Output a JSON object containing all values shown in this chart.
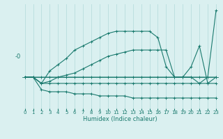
{
  "xlabel": "Humidex (Indice chaleur)",
  "ylabel": "-0",
  "x": [
    0,
    1,
    2,
    3,
    4,
    5,
    6,
    7,
    8,
    9,
    10,
    11,
    12,
    13,
    14,
    15,
    16,
    17,
    18,
    19,
    20,
    21,
    22,
    23
  ],
  "line_top": [
    0,
    0,
    0,
    0,
    0,
    0,
    0,
    0,
    0,
    0,
    0,
    0,
    0,
    0,
    0,
    0,
    0,
    0,
    0,
    0,
    0,
    0,
    0,
    3.2
  ],
  "line_hump": [
    0,
    0,
    -0.3,
    0.3,
    0.6,
    0.9,
    1.3,
    1.5,
    1.7,
    1.9,
    2.1,
    2.2,
    2.2,
    2.2,
    2.2,
    2.2,
    1.9,
    0.5,
    0.0,
    0.0,
    0.0,
    -0.3,
    0.0,
    0.0
  ],
  "line_mid": [
    0,
    0,
    -0.3,
    -0.2,
    0.0,
    0.1,
    0.2,
    0.4,
    0.6,
    0.8,
    1.0,
    1.1,
    1.2,
    1.3,
    1.3,
    1.3,
    1.3,
    1.3,
    0.0,
    0.0,
    0.5,
    1.5,
    -0.3,
    0.0
  ],
  "line_flat1": [
    0,
    0,
    -0.3,
    -0.3,
    -0.3,
    -0.3,
    -0.3,
    -0.3,
    -0.3,
    -0.3,
    -0.3,
    -0.3,
    -0.3,
    -0.3,
    -0.3,
    -0.3,
    -0.3,
    -0.3,
    -0.3,
    -0.3,
    -0.3,
    -0.3,
    -0.3,
    -0.3
  ],
  "line_flat2": [
    0,
    0,
    -0.6,
    -0.7,
    -0.7,
    -0.7,
    -0.8,
    -0.8,
    -0.8,
    -0.9,
    -0.9,
    -0.9,
    -0.9,
    -1.0,
    -1.0,
    -1.0,
    -1.0,
    -1.0,
    -1.0,
    -1.0,
    -1.0,
    -1.0,
    -1.0,
    -1.0
  ],
  "bg_color": "#daf0f0",
  "line_color": "#1a7a6e",
  "grid_color": "#b8dede",
  "tick_fontsize": 5.0,
  "label_fontsize": 6.0,
  "xlim": [
    0,
    23
  ],
  "ylim": [
    -1.5,
    3.5
  ]
}
